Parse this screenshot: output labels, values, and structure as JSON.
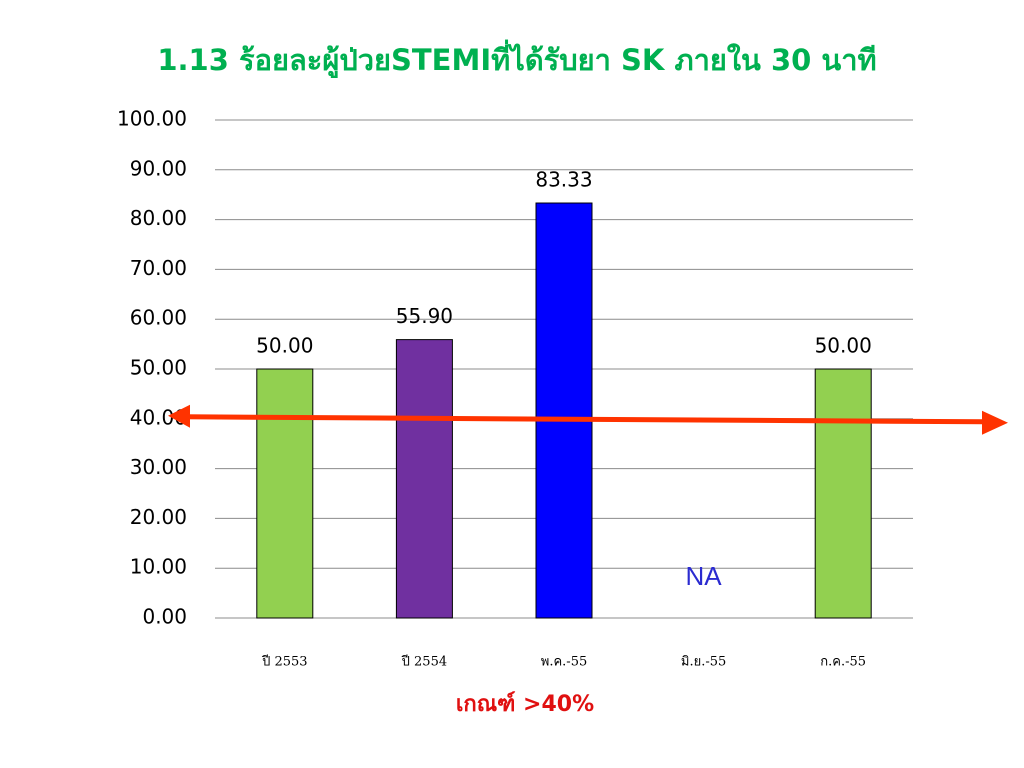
{
  "chart_data": {
    "type": "bar",
    "title": "1.13 ร้อยละผู้ป่วยSTEMIที่ได้รับยา SK ภายใน 30 นาที",
    "categories": [
      "ปี 2553",
      "ปี 2554",
      "พ.ค.-55",
      "มิ.ย.-55",
      "ก.ค.-55"
    ],
    "values": [
      50,
      55.9,
      83.33,
      null,
      50
    ],
    "value_labels": [
      "50.00",
      "55.90",
      "83.33",
      "NA",
      "50.00"
    ],
    "colors": [
      "#92d050",
      "#7030a0",
      "#0000ff",
      null,
      "#92d050"
    ],
    "ylim": [
      0,
      100
    ],
    "yticks": [
      {
        "value": 0,
        "label": "0.00"
      },
      {
        "value": 10,
        "label": "10.00"
      },
      {
        "value": 20,
        "label": "20.00"
      },
      {
        "value": 30,
        "label": "30.00"
      },
      {
        "value": 40,
        "label": "40.00"
      },
      {
        "value": 50,
        "label": "50.00"
      },
      {
        "value": 60,
        "label": "60.00"
      },
      {
        "value": 70,
        "label": "70.00"
      },
      {
        "value": 80,
        "label": "80.00"
      },
      {
        "value": 90,
        "label": "90.00"
      },
      {
        "value": 100,
        "label": "100.00"
      }
    ],
    "grid": true,
    "threshold": {
      "value": 40,
      "label": "เกณฑ์ >40%",
      "color": "#ff3300"
    }
  }
}
